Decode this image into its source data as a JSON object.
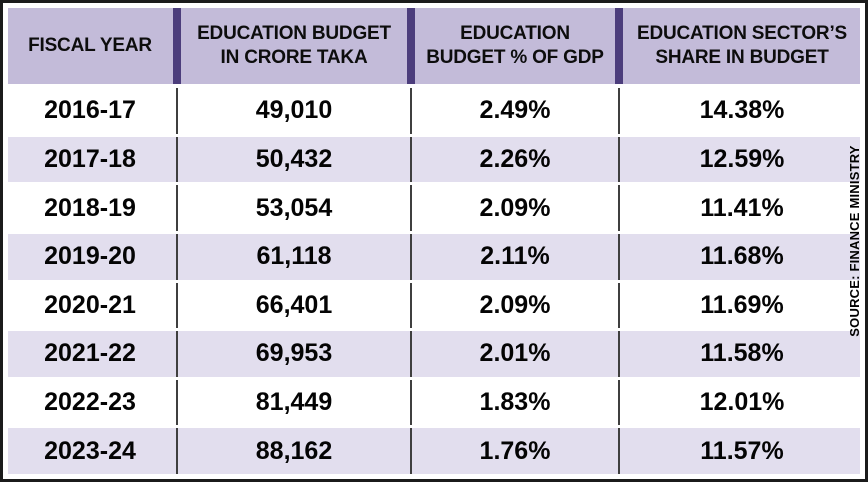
{
  "table": {
    "columns": [
      {
        "lines": [
          "FISCAL YEAR"
        ]
      },
      {
        "lines": [
          "EDUCATION BUDGET",
          "IN CRORE TAKA"
        ]
      },
      {
        "lines": [
          "EDUCATION",
          "BUDGET % OF GDP"
        ]
      },
      {
        "lines": [
          "EDUCATION SECTOR’S",
          "SHARE IN BUDGET"
        ]
      }
    ],
    "rows": [
      {
        "fiscal_year": "2016-17",
        "budget_crore_taka": "49,010",
        "budget_pct_gdp": "2.49%",
        "sector_share": "14.38%"
      },
      {
        "fiscal_year": "2017-18",
        "budget_crore_taka": "50,432",
        "budget_pct_gdp": "2.26%",
        "sector_share": "12.59%"
      },
      {
        "fiscal_year": "2018-19",
        "budget_crore_taka": "53,054",
        "budget_pct_gdp": "2.09%",
        "sector_share": "11.41%"
      },
      {
        "fiscal_year": "2019-20",
        "budget_crore_taka": "61,118",
        "budget_pct_gdp": "2.11%",
        "sector_share": "11.68%"
      },
      {
        "fiscal_year": "2020-21",
        "budget_crore_taka": "66,401",
        "budget_pct_gdp": "2.09%",
        "sector_share": "11.69%"
      },
      {
        "fiscal_year": "2021-22",
        "budget_crore_taka": "69,953",
        "budget_pct_gdp": "2.01%",
        "sector_share": "11.58%"
      },
      {
        "fiscal_year": "2022-23",
        "budget_crore_taka": "81,449",
        "budget_pct_gdp": "1.83%",
        "sector_share": "12.01%"
      },
      {
        "fiscal_year": "2023-24",
        "budget_crore_taka": "88,162",
        "budget_pct_gdp": "1.76%",
        "sector_share": "11.57%"
      }
    ]
  },
  "source_label": "SOURCE: FINANCE MINISTRY",
  "colors": {
    "header_background": "#c3bbd9",
    "row_tint": "#e2deee",
    "divider_purple": "#4c3d7c",
    "divider_thin": "#3f3f3f",
    "border": "#1b1b1b",
    "text": "#040404"
  },
  "chart_data": {
    "type": "table",
    "title": "",
    "columns": [
      "FISCAL YEAR",
      "EDUCATION BUDGET IN CRORE TAKA",
      "EDUCATION BUDGET % OF GDP",
      "EDUCATION SECTOR’S SHARE IN BUDGET"
    ],
    "rows": [
      [
        "2016-17",
        49010,
        2.49,
        14.38
      ],
      [
        "2017-18",
        50432,
        2.26,
        12.59
      ],
      [
        "2018-19",
        53054,
        2.09,
        11.41
      ],
      [
        "2019-20",
        61118,
        2.11,
        11.68
      ],
      [
        "2020-21",
        66401,
        2.09,
        11.69
      ],
      [
        "2021-22",
        69953,
        2.01,
        11.58
      ],
      [
        "2022-23",
        81449,
        1.83,
        12.01
      ],
      [
        "2023-24",
        88162,
        1.76,
        11.57
      ]
    ],
    "units": {
      "budget": "crore taka",
      "budget_pct_gdp": "% of GDP",
      "sector_share": "% of total budget"
    },
    "source": "FINANCE MINISTRY",
    "legend_position": "none",
    "grid": "row and column dividers"
  }
}
